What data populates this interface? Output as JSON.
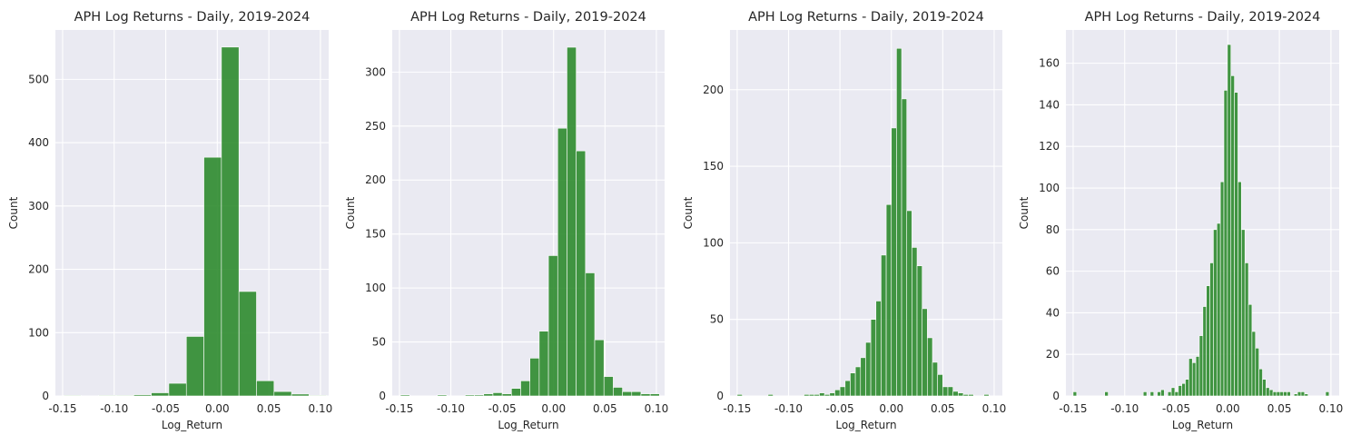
{
  "chart_data": [
    {
      "type": "bar",
      "title": "APH Log Returns - Daily, 2019-2024",
      "xlabel": "Log_Return",
      "ylabel": "Count",
      "xlim": [
        -0.157,
        0.108
      ],
      "ylim": [
        0,
        578
      ],
      "xticks": [
        -0.15,
        -0.1,
        -0.05,
        0.0,
        0.05,
        0.1
      ],
      "xtick_labels": [
        "-0.15",
        "-0.10",
        "-0.05",
        "0.00",
        "0.05",
        "0.10"
      ],
      "yticks": [
        0,
        100,
        200,
        300,
        400,
        500
      ],
      "grid": true,
      "bar_color": "#2e8b2e",
      "bins": [
        [
          -0.149,
          -0.132,
          1
        ],
        [
          -0.132,
          -0.115,
          0
        ],
        [
          -0.115,
          -0.098,
          1
        ],
        [
          -0.098,
          -0.081,
          1
        ],
        [
          -0.081,
          -0.064,
          2
        ],
        [
          -0.064,
          -0.047,
          5
        ],
        [
          -0.047,
          -0.03,
          20
        ],
        [
          -0.03,
          -0.013,
          94
        ],
        [
          -0.013,
          0.004,
          377
        ],
        [
          0.004,
          0.021,
          551
        ],
        [
          0.021,
          0.038,
          165
        ],
        [
          0.038,
          0.055,
          24
        ],
        [
          0.055,
          0.072,
          7
        ],
        [
          0.072,
          0.089,
          3
        ],
        [
          0.089,
          0.106,
          1
        ]
      ]
    },
    {
      "type": "bar",
      "title": "APH Log Returns - Daily, 2019-2024",
      "xlabel": "Log_Return",
      "ylabel": "Count",
      "xlim": [
        -0.157,
        0.108
      ],
      "ylim": [
        0,
        339
      ],
      "xticks": [
        -0.15,
        -0.1,
        -0.05,
        0.0,
        0.05,
        0.1
      ],
      "xtick_labels": [
        "-0.15",
        "-0.10",
        "-0.05",
        "0.00",
        "0.05",
        "0.10"
      ],
      "yticks": [
        0,
        50,
        100,
        150,
        200,
        250,
        300
      ],
      "grid": true,
      "bar_color": "#2e8b2e",
      "bins": [
        [
          -0.149,
          -0.14,
          1
        ],
        [
          -0.14,
          -0.131,
          0
        ],
        [
          -0.131,
          -0.122,
          0
        ],
        [
          -0.122,
          -0.113,
          0
        ],
        [
          -0.113,
          -0.104,
          1
        ],
        [
          -0.104,
          -0.095,
          0
        ],
        [
          -0.095,
          -0.086,
          0
        ],
        [
          -0.086,
          -0.077,
          1
        ],
        [
          -0.077,
          -0.068,
          1
        ],
        [
          -0.068,
          -0.059,
          2
        ],
        [
          -0.059,
          -0.05,
          3
        ],
        [
          -0.05,
          -0.041,
          2
        ],
        [
          -0.041,
          -0.032,
          7
        ],
        [
          -0.032,
          -0.023,
          14
        ],
        [
          -0.023,
          -0.014,
          35
        ],
        [
          -0.014,
          -0.005,
          60
        ],
        [
          -0.005,
          0.004,
          130
        ],
        [
          0.004,
          0.013,
          248
        ],
        [
          0.013,
          0.022,
          323
        ],
        [
          0.022,
          0.031,
          227
        ],
        [
          0.031,
          0.04,
          114
        ],
        [
          0.04,
          0.049,
          52
        ],
        [
          0.049,
          0.058,
          18
        ],
        [
          0.058,
          0.067,
          8
        ],
        [
          0.067,
          0.076,
          4
        ],
        [
          0.076,
          0.085,
          4
        ],
        [
          0.085,
          0.094,
          2
        ],
        [
          0.094,
          0.103,
          2
        ]
      ]
    },
    {
      "type": "bar",
      "title": "APH Log Returns - Daily, 2019-2024",
      "xlabel": "Log_Return",
      "ylabel": "Count",
      "xlim": [
        -0.157,
        0.108
      ],
      "ylim": [
        0,
        239
      ],
      "xticks": [
        -0.15,
        -0.1,
        -0.05,
        0.0,
        0.05,
        0.1
      ],
      "xtick_labels": [
        "-0.15",
        "-0.10",
        "-0.05",
        "0.00",
        "0.05",
        "0.10"
      ],
      "yticks": [
        0,
        50,
        100,
        150,
        200
      ],
      "grid": true,
      "bar_color": "#2e8b2e",
      "bins": [
        [
          -0.15,
          -0.145,
          1
        ],
        [
          -0.145,
          -0.14,
          0
        ],
        [
          -0.14,
          -0.135,
          0
        ],
        [
          -0.135,
          -0.13,
          0
        ],
        [
          -0.13,
          -0.125,
          0
        ],
        [
          -0.125,
          -0.12,
          0
        ],
        [
          -0.12,
          -0.115,
          1
        ],
        [
          -0.115,
          -0.11,
          0
        ],
        [
          -0.11,
          -0.105,
          0
        ],
        [
          -0.105,
          -0.1,
          0
        ],
        [
          -0.1,
          -0.095,
          0
        ],
        [
          -0.095,
          -0.09,
          0
        ],
        [
          -0.09,
          -0.085,
          0
        ],
        [
          -0.085,
          -0.08,
          1
        ],
        [
          -0.08,
          -0.075,
          1
        ],
        [
          -0.075,
          -0.07,
          1
        ],
        [
          -0.07,
          -0.065,
          2
        ],
        [
          -0.065,
          -0.06,
          1
        ],
        [
          -0.06,
          -0.055,
          2
        ],
        [
          -0.055,
          -0.05,
          4
        ],
        [
          -0.05,
          -0.045,
          6
        ],
        [
          -0.045,
          -0.04,
          10
        ],
        [
          -0.04,
          -0.035,
          15
        ],
        [
          -0.035,
          -0.03,
          19
        ],
        [
          -0.03,
          -0.025,
          25
        ],
        [
          -0.025,
          -0.02,
          35
        ],
        [
          -0.02,
          -0.015,
          50
        ],
        [
          -0.015,
          -0.01,
          62
        ],
        [
          -0.01,
          -0.005,
          92
        ],
        [
          -0.005,
          0.0,
          125
        ],
        [
          0.0,
          0.005,
          175
        ],
        [
          0.005,
          0.01,
          227
        ],
        [
          0.01,
          0.015,
          194
        ],
        [
          0.015,
          0.02,
          121
        ],
        [
          0.02,
          0.025,
          97
        ],
        [
          0.025,
          0.03,
          85
        ],
        [
          0.03,
          0.035,
          57
        ],
        [
          0.035,
          0.04,
          38
        ],
        [
          0.04,
          0.045,
          22
        ],
        [
          0.045,
          0.05,
          14
        ],
        [
          0.05,
          0.055,
          6
        ],
        [
          0.055,
          0.06,
          6
        ],
        [
          0.06,
          0.065,
          3
        ],
        [
          0.065,
          0.07,
          2
        ],
        [
          0.07,
          0.075,
          1
        ],
        [
          0.075,
          0.08,
          1
        ],
        [
          0.08,
          0.085,
          0
        ],
        [
          0.085,
          0.09,
          0
        ],
        [
          0.09,
          0.095,
          1
        ]
      ]
    },
    {
      "type": "bar",
      "title": "APH Log Returns - Daily, 2019-2024",
      "xlabel": "Log_Return",
      "ylabel": "Count",
      "xlim": [
        -0.157,
        0.108
      ],
      "ylim": [
        0,
        176
      ],
      "xticks": [
        -0.15,
        -0.1,
        -0.05,
        0.0,
        0.05,
        0.1
      ],
      "xtick_labels": [
        "-0.15",
        "-0.10",
        "-0.05",
        "0.00",
        "0.05",
        "0.10"
      ],
      "yticks": [
        0,
        20,
        40,
        60,
        80,
        100,
        120,
        140,
        160
      ],
      "grid": true,
      "bar_color": "#2e8b2e",
      "bins": [
        [
          -0.15,
          -0.1466,
          2
        ],
        [
          -0.1194,
          -0.116,
          2
        ],
        [
          -0.082,
          -0.0786,
          2
        ],
        [
          -0.0752,
          -0.0718,
          2
        ],
        [
          -0.0684,
          -0.065,
          2
        ],
        [
          -0.065,
          -0.0616,
          3
        ],
        [
          -0.0582,
          -0.0548,
          2
        ],
        [
          -0.0548,
          -0.0514,
          4
        ],
        [
          -0.0514,
          -0.048,
          2
        ],
        [
          -0.048,
          -0.0446,
          5
        ],
        [
          -0.0446,
          -0.0412,
          6
        ],
        [
          -0.0412,
          -0.0378,
          8
        ],
        [
          -0.0378,
          -0.0344,
          18
        ],
        [
          -0.0344,
          -0.031,
          16
        ],
        [
          -0.031,
          -0.0276,
          19
        ],
        [
          -0.0276,
          -0.0242,
          29
        ],
        [
          -0.0242,
          -0.0208,
          43
        ],
        [
          -0.0208,
          -0.0174,
          53
        ],
        [
          -0.0174,
          -0.014,
          64
        ],
        [
          -0.014,
          -0.0106,
          80
        ],
        [
          -0.0106,
          -0.0072,
          83
        ],
        [
          -0.0072,
          -0.0038,
          103
        ],
        [
          -0.0038,
          -0.0004,
          147
        ],
        [
          -0.0004,
          0.003,
          169
        ],
        [
          0.003,
          0.0064,
          154
        ],
        [
          0.0064,
          0.0098,
          146
        ],
        [
          0.0098,
          0.0132,
          103
        ],
        [
          0.0132,
          0.0166,
          80
        ],
        [
          0.0166,
          0.02,
          64
        ],
        [
          0.02,
          0.0234,
          44
        ],
        [
          0.0234,
          0.0268,
          31
        ],
        [
          0.0268,
          0.0302,
          23
        ],
        [
          0.0302,
          0.0336,
          13
        ],
        [
          0.0336,
          0.037,
          8
        ],
        [
          0.037,
          0.0404,
          4
        ],
        [
          0.0404,
          0.0438,
          3
        ],
        [
          0.0438,
          0.0472,
          2
        ],
        [
          0.0472,
          0.0506,
          2
        ],
        [
          0.0506,
          0.054,
          2
        ],
        [
          0.054,
          0.0574,
          2
        ],
        [
          0.0574,
          0.0608,
          2
        ],
        [
          0.0642,
          0.0676,
          1
        ],
        [
          0.0676,
          0.071,
          2
        ],
        [
          0.071,
          0.0744,
          2
        ],
        [
          0.0744,
          0.0778,
          1
        ],
        [
          0.0948,
          0.0982,
          2
        ]
      ]
    }
  ]
}
